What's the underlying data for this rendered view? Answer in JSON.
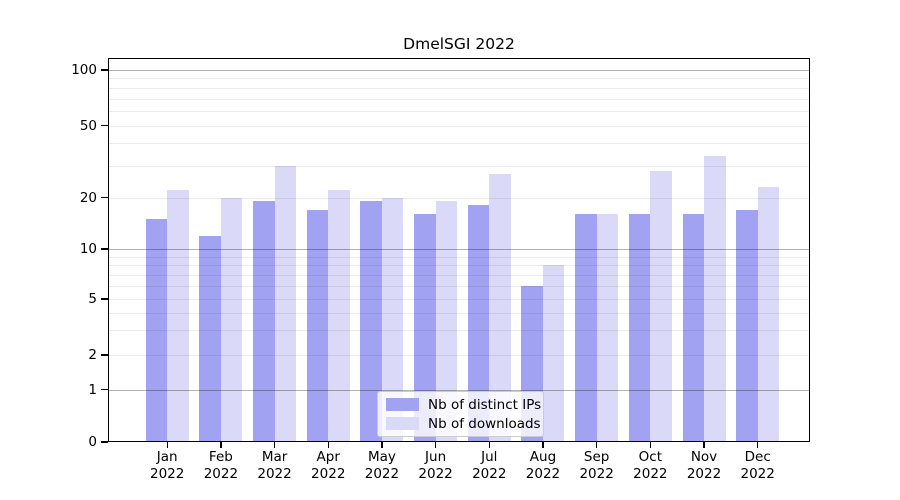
{
  "title": "DmelSGI 2022",
  "chart_data": {
    "type": "bar",
    "title": "DmelSGI 2022",
    "xlabel": "",
    "ylabel": "",
    "categories": [
      "Jan",
      "Feb",
      "Mar",
      "Apr",
      "May",
      "Jun",
      "Jul",
      "Aug",
      "Sep",
      "Oct",
      "Nov",
      "Dec"
    ],
    "year_label": "2022",
    "series": [
      {
        "name": "Nb of distinct IPs",
        "color": "#a2a2f2",
        "values": [
          15,
          12,
          19,
          17,
          19,
          16,
          18,
          6,
          16,
          16,
          16,
          17
        ]
      },
      {
        "name": "Nb of downloads",
        "color": "#dadaf8",
        "values": [
          22,
          20,
          30,
          22,
          20,
          19,
          27,
          8,
          16,
          28,
          34,
          23
        ]
      }
    ],
    "yticks": [
      0,
      1,
      2,
      5,
      10,
      20,
      50,
      100
    ],
    "yscale": "symlog",
    "ylim": [
      0,
      115
    ],
    "grid": true,
    "legend_position": "lower center"
  },
  "legend": {
    "items": [
      "Nb of distinct IPs",
      "Nb of downloads"
    ]
  }
}
